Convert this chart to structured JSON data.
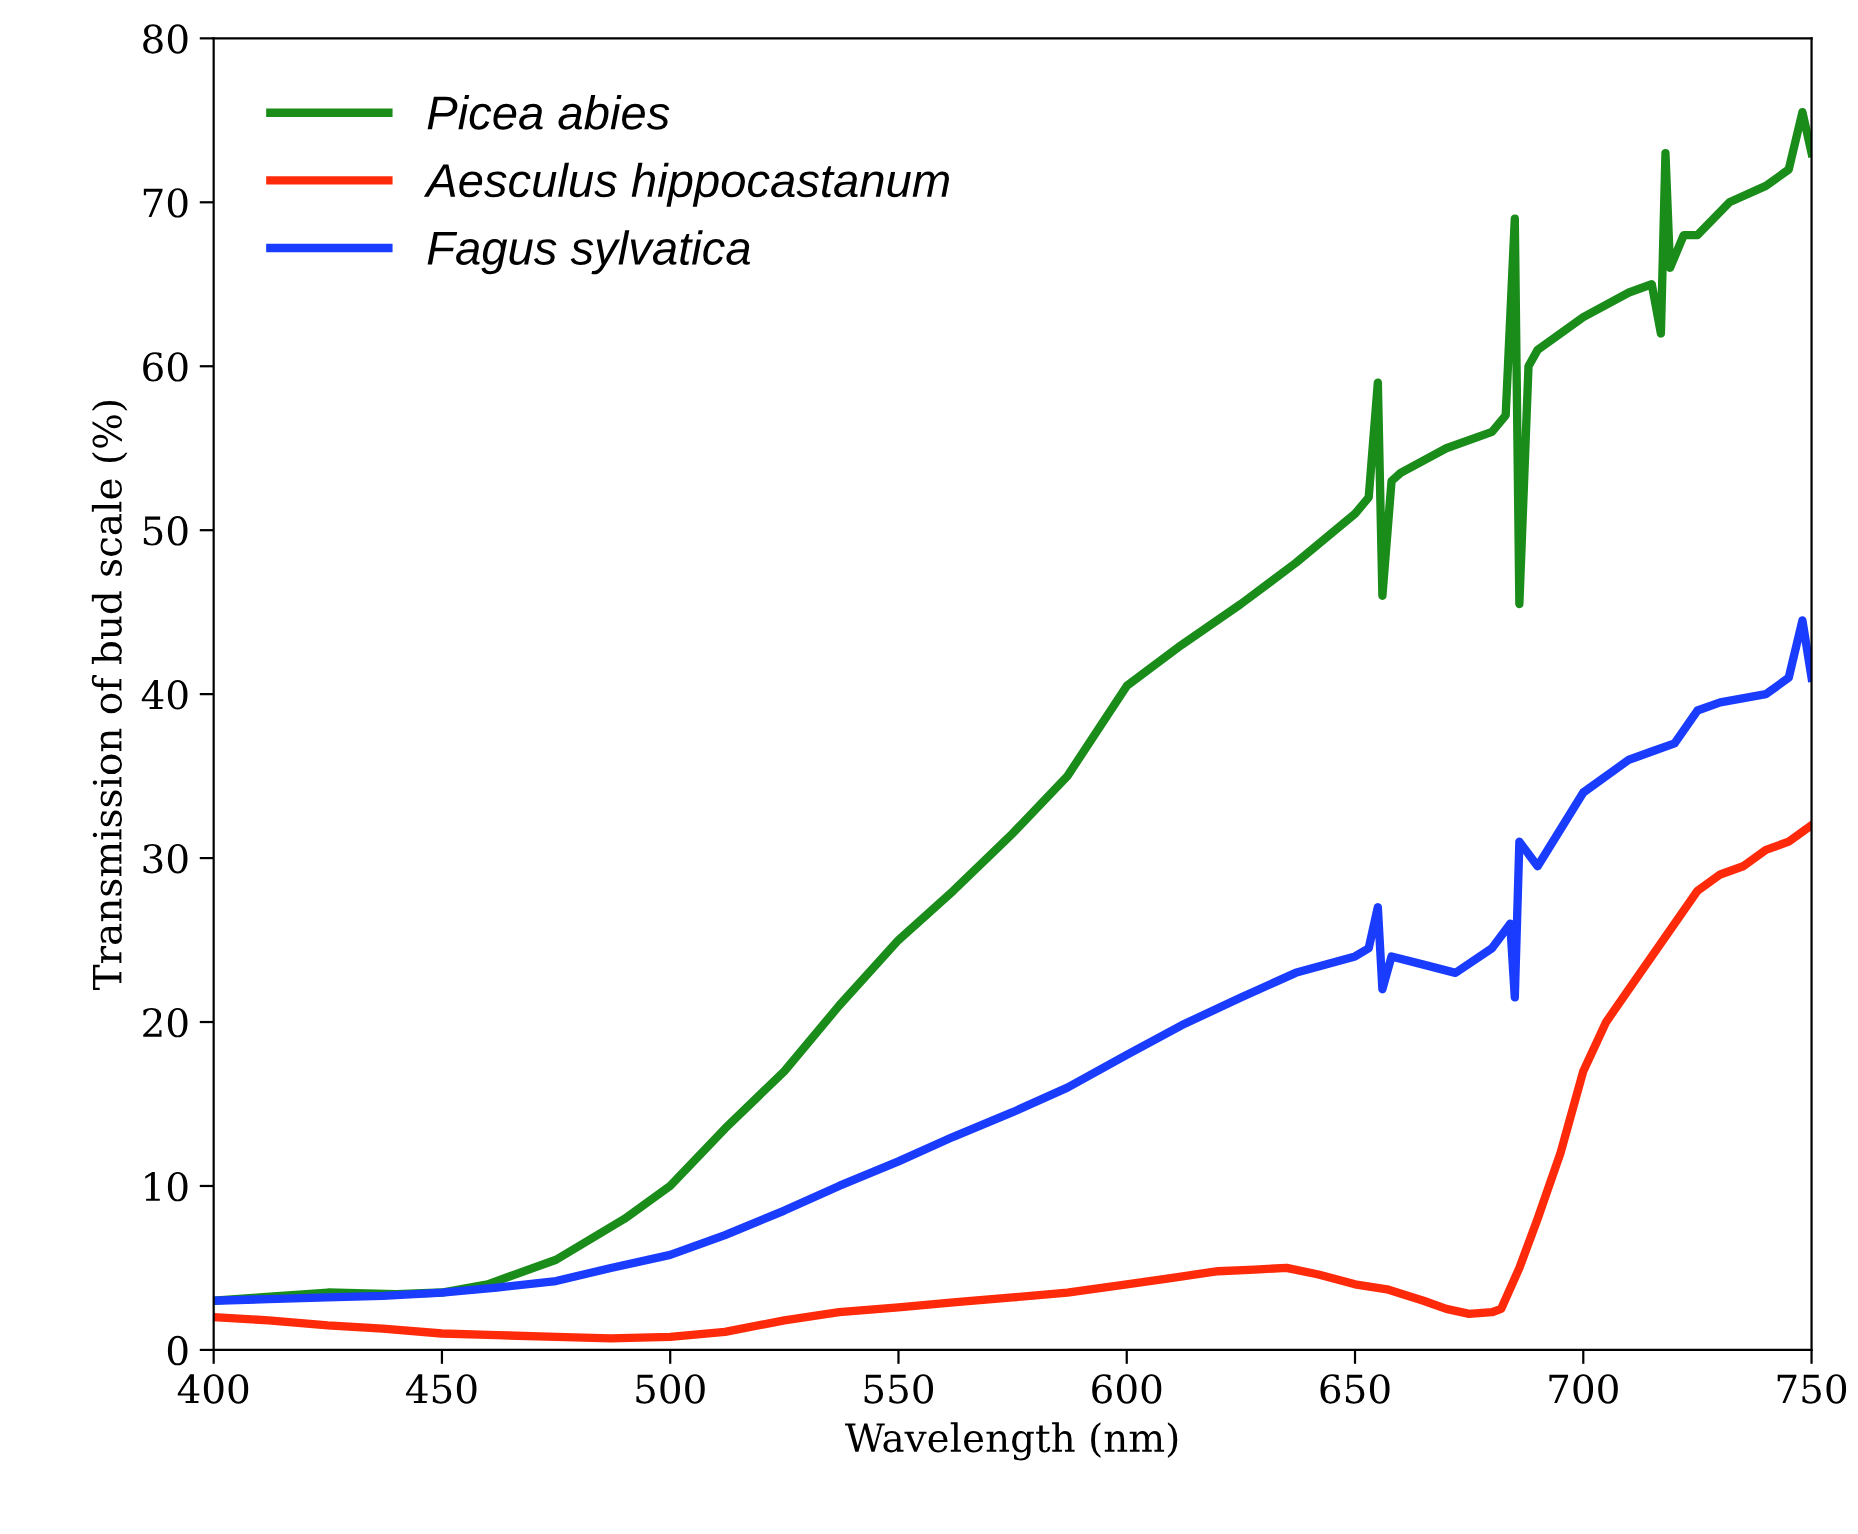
{
  "chart_data": {
    "type": "line",
    "xlabel": "Wavelength (nm)",
    "ylabel": "Transmission of bud scale (%)",
    "xlim": [
      400,
      750
    ],
    "ylim": [
      0,
      80
    ],
    "xticks": [
      400,
      450,
      500,
      550,
      600,
      650,
      700,
      750
    ],
    "yticks": [
      0,
      10,
      20,
      30,
      40,
      50,
      60,
      70,
      80
    ],
    "grid": false,
    "legend": "top left",
    "line_style": "solid",
    "marker": "none",
    "series": [
      {
        "name": "Picea abies",
        "color": "#1a8c1a",
        "x": [
          400,
          410,
          425,
          440,
          450,
          460,
          475,
          490,
          500,
          512,
          525,
          537,
          550,
          562,
          575,
          587,
          600,
          612,
          625,
          637,
          650,
          653,
          655,
          656,
          658,
          660,
          670,
          680,
          683,
          685,
          686,
          688,
          690,
          700,
          710,
          715,
          717,
          718,
          719,
          722,
          725,
          732,
          740,
          745,
          748,
          750
        ],
        "values": [
          3,
          3.2,
          3.5,
          3.4,
          3.5,
          4,
          5.5,
          8,
          10,
          13.5,
          17,
          21,
          25,
          28,
          31.5,
          35,
          40.5,
          43,
          45.5,
          48,
          51,
          52,
          59,
          46,
          53,
          53.5,
          55,
          56,
          57,
          69,
          45.5,
          60,
          61,
          63,
          64.5,
          65,
          62,
          73,
          66,
          68,
          68,
          70,
          71,
          72,
          75.5,
          73
        ]
      },
      {
        "name": "Aesculus hippocastanum",
        "color": "#ff2a0a",
        "x": [
          400,
          412,
          425,
          437,
          450,
          462,
          475,
          487,
          500,
          512,
          525,
          537,
          550,
          562,
          575,
          587,
          600,
          610,
          620,
          628,
          635,
          642,
          650,
          657,
          665,
          670,
          675,
          680,
          682,
          686,
          690,
          695,
          700,
          705,
          710,
          715,
          720,
          725,
          730,
          735,
          740,
          745,
          750
        ],
        "values": [
          2,
          1.8,
          1.5,
          1.3,
          1,
          0.9,
          0.8,
          0.7,
          0.8,
          1.1,
          1.8,
          2.3,
          2.6,
          2.9,
          3.2,
          3.5,
          4,
          4.4,
          4.8,
          4.9,
          5,
          4.6,
          4,
          3.7,
          3,
          2.5,
          2.2,
          2.3,
          2.5,
          5,
          8,
          12,
          17,
          20,
          22,
          24,
          26,
          28,
          29,
          29.5,
          30.5,
          31,
          32
        ]
      },
      {
        "name": "Fagus sylvatica",
        "color": "#1a3cff",
        "x": [
          400,
          412,
          425,
          437,
          450,
          462,
          475,
          487,
          500,
          512,
          525,
          537,
          550,
          562,
          575,
          587,
          600,
          612,
          625,
          637,
          650,
          653,
          655,
          656,
          658,
          665,
          672,
          680,
          684,
          685,
          686,
          690,
          700,
          710,
          715,
          720,
          725,
          730,
          740,
          745,
          748,
          750
        ],
        "values": [
          3,
          3.1,
          3.2,
          3.3,
          3.5,
          3.8,
          4.2,
          5,
          5.8,
          7,
          8.5,
          10,
          11.5,
          13,
          14.5,
          16,
          18,
          19.8,
          21.5,
          23,
          24,
          24.5,
          27,
          22,
          24,
          23.5,
          23,
          24.5,
          26,
          21.5,
          31,
          29.5,
          34,
          36,
          36.5,
          37,
          39,
          39.5,
          40,
          41,
          44.5,
          41
        ]
      }
    ]
  }
}
